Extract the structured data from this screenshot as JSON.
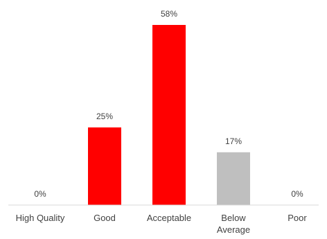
{
  "chart_data": {
    "type": "bar",
    "categories": [
      "High Quality",
      "Good",
      "Acceptable",
      "Below Average",
      "Poor"
    ],
    "category_lines": [
      [
        "High Quality"
      ],
      [
        "Good"
      ],
      [
        "Acceptable"
      ],
      [
        "Below",
        "Average"
      ],
      [
        "Poor"
      ]
    ],
    "values": [
      0,
      25,
      58,
      17,
      0
    ],
    "data_labels": [
      "0%",
      "25%",
      "58%",
      "17%",
      "0%"
    ],
    "bar_colors": [
      "#ff0000",
      "#ff0000",
      "#ff0000",
      "#bfbfbf",
      "#ff0000"
    ],
    "axis_color": "#d9d9d9",
    "title": "",
    "xlabel": "",
    "ylabel": "",
    "ylim": [
      0,
      60
    ],
    "grid": false,
    "legend": "none"
  }
}
